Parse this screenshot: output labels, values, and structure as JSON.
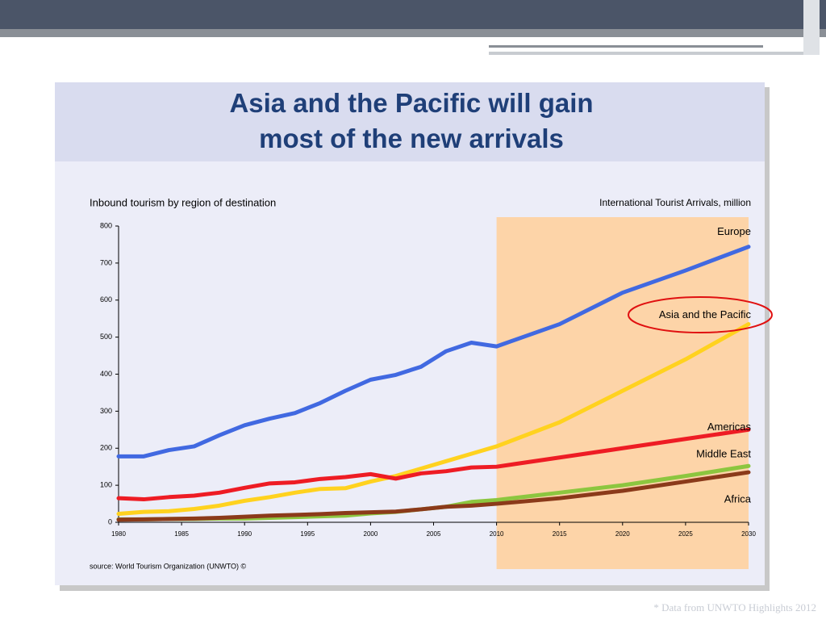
{
  "slide_title": "Asia and the Pacific will gain most of the new arrivals",
  "footnote": "* Data from UNWTO Highlights 2012",
  "chart_data": {
    "type": "line",
    "subtitle": "Inbound tourism by region of destination",
    "y_axis_label": "International Tourist Arrivals, million",
    "source": "source: World Tourism Organization (UNWTO) ©",
    "x": [
      1980,
      1982,
      1984,
      1986,
      1988,
      1990,
      1992,
      1994,
      1996,
      1998,
      2000,
      2002,
      2004,
      2006,
      2008,
      2010,
      2015,
      2020,
      2025,
      2030
    ],
    "xlim": [
      1980,
      2030
    ],
    "xticks": [
      1980,
      1985,
      1990,
      1995,
      2000,
      2005,
      2010,
      2015,
      2020,
      2025,
      2030
    ],
    "ylim": [
      0,
      800
    ],
    "yticks": [
      0,
      100,
      200,
      300,
      400,
      500,
      600,
      700,
      800
    ],
    "shaded_region": [
      2010,
      2030
    ],
    "series": [
      {
        "name": "Europe",
        "color": "#4169e1",
        "values": [
          178,
          178,
          195,
          205,
          235,
          262,
          280,
          295,
          322,
          355,
          385,
          398,
          420,
          462,
          485,
          475,
          535,
          620,
          680,
          744
        ]
      },
      {
        "name": "Asia and the Pacific",
        "color": "#ffd21f",
        "values": [
          23,
          28,
          30,
          36,
          45,
          58,
          68,
          80,
          90,
          92,
          110,
          125,
          145,
          165,
          185,
          205,
          270,
          355,
          440,
          535
        ]
      },
      {
        "name": "Americas",
        "color": "#ee1c24",
        "values": [
          65,
          62,
          68,
          72,
          80,
          93,
          105,
          108,
          117,
          122,
          130,
          118,
          132,
          138,
          148,
          150,
          175,
          200,
          225,
          250
        ]
      },
      {
        "name": "Middle East",
        "color": "#8cc63f",
        "values": [
          8,
          8,
          9,
          9,
          10,
          10,
          12,
          14,
          16,
          18,
          24,
          28,
          35,
          42,
          55,
          60,
          80,
          100,
          125,
          152
        ]
      },
      {
        "name": "Africa",
        "color": "#8b3a1a",
        "values": [
          7,
          8,
          9,
          10,
          12,
          15,
          18,
          20,
          22,
          25,
          27,
          29,
          35,
          42,
          45,
          50,
          65,
          85,
          110,
          135
        ]
      }
    ]
  }
}
